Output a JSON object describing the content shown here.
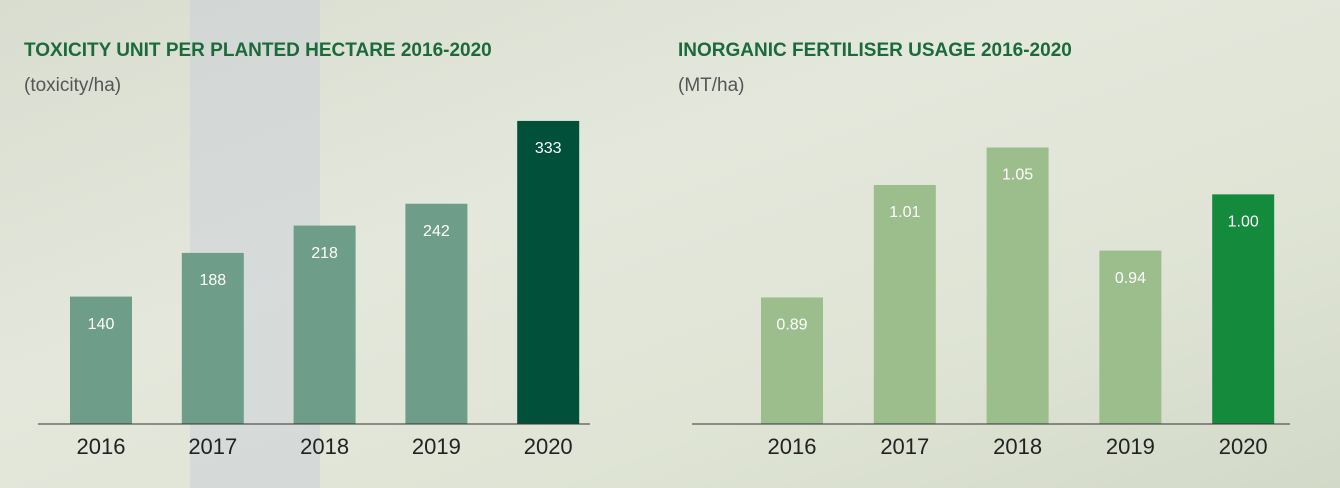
{
  "chart_data": [
    {
      "type": "bar",
      "title": "TOXICITY UNIT PER PLANTED HECTARE 2016-2020",
      "subtitle": "(toxicity/ha)",
      "categories": [
        "2016",
        "2017",
        "2018",
        "2019",
        "2020"
      ],
      "values": [
        140,
        188,
        218,
        242,
        333
      ],
      "colors": [
        "#6e9e8a",
        "#6e9e8a",
        "#6e9e8a",
        "#6e9e8a",
        "#00503a"
      ],
      "ylim": [
        0,
        345
      ]
    },
    {
      "type": "bar",
      "title": "INORGANIC FERTILISER USAGE 2016-2020",
      "subtitle": "(MT/ha)",
      "categories": [
        "2016",
        "2017",
        "2018",
        "2019",
        "2020"
      ],
      "values": [
        0.89,
        1.01,
        1.05,
        0.94,
        1
      ],
      "value_labels": [
        "0.89",
        "1.01",
        "1.05",
        "0.94",
        "1.00"
      ],
      "colors": [
        "#9cbd8c",
        "#9cbd8c",
        "#9cbd8c",
        "#9cbd8c",
        "#138a3c"
      ],
      "ylim": [
        0.755,
        1.09
      ]
    }
  ]
}
